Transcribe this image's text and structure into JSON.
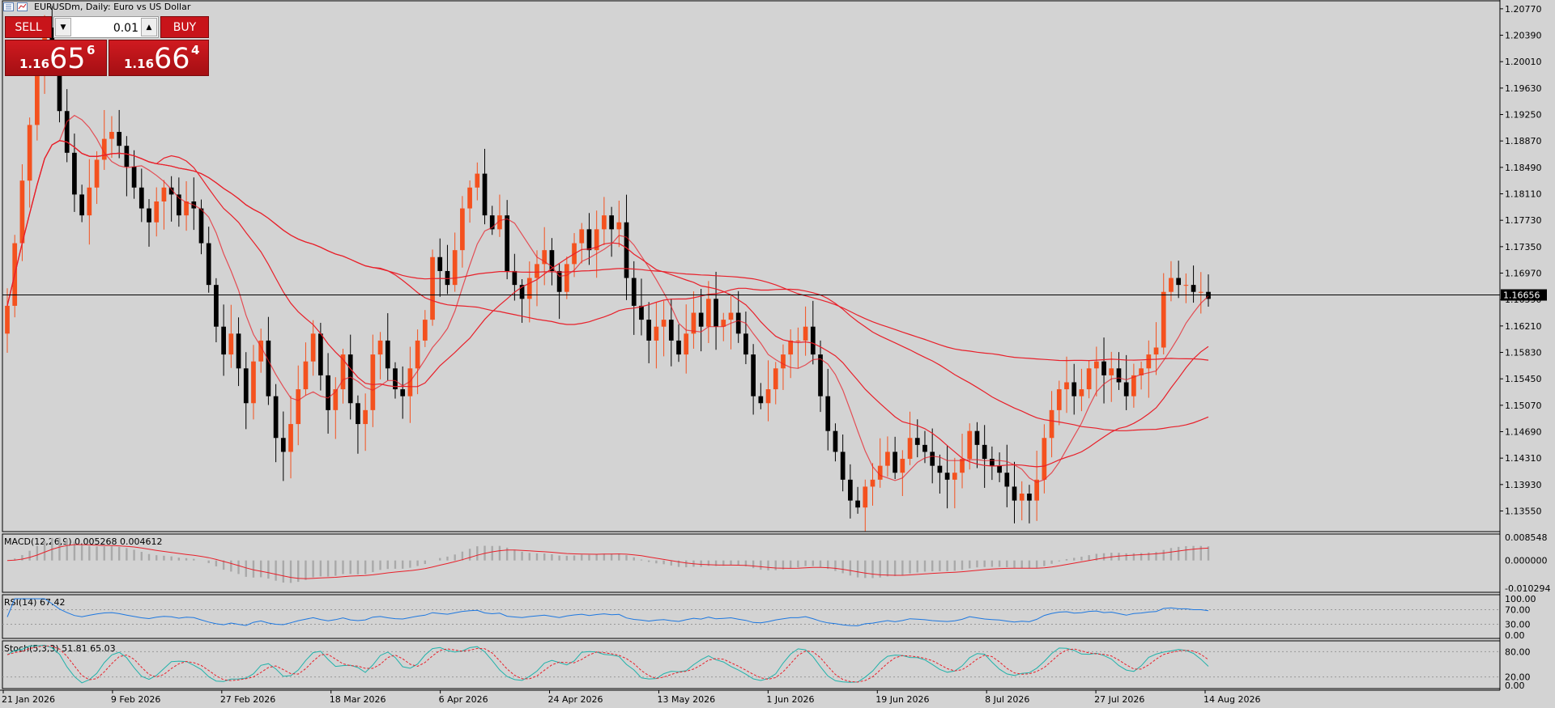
{
  "header": {
    "title": "EURUSDm, Daily:  Euro vs US Dollar"
  },
  "trade_panel": {
    "sell_label": "SELL",
    "buy_label": "BUY",
    "lot_value": "0.01",
    "sell_price": {
      "prefix": "1.16",
      "big": "65",
      "sup": "6"
    },
    "buy_price": {
      "prefix": "1.16",
      "big": "66",
      "sup": "4"
    }
  },
  "colors": {
    "bull": "#f4511e",
    "bear": "#000000",
    "ma": "#e8202a",
    "rsi": "#1e78e0",
    "stoch_main": "#20b2aa",
    "stoch_signal": "#e8202a",
    "background": "#d3d3d3"
  },
  "chart_data": [
    {
      "type": "candlestick",
      "title": "EURUSDm, Daily:  Euro vs US Dollar",
      "ylim": [
        1.133,
        1.2085
      ],
      "y_ticks": [
        "1.20770",
        "1.20390",
        "1.20010",
        "1.19630",
        "1.19250",
        "1.18870",
        "1.18490",
        "1.18110",
        "1.17730",
        "1.17350",
        "1.16970",
        "1.16590",
        "1.16210",
        "1.15830",
        "1.15450",
        "1.15070",
        "1.14690",
        "1.14310",
        "1.13930",
        "1.13550"
      ],
      "current_price_label": "1.16656",
      "current_price": 1.16656,
      "x_ticks": [
        "21 Jan 2026",
        "9 Feb 2026",
        "27 Feb 2026",
        "18 Mar 2026",
        "6 Apr 2026",
        "24 Apr 2026",
        "13 May 2026",
        "1 Jun 2026",
        "19 Jun 2026",
        "8 Jul 2026",
        "27 Jul 2026",
        "14 Aug 2026"
      ],
      "close_path": [
        1.165,
        1.174,
        1.183,
        1.191,
        1.199,
        1.205,
        1.2,
        1.193,
        1.187,
        1.181,
        1.178,
        1.182,
        1.186,
        1.189,
        1.19,
        1.188,
        1.185,
        1.182,
        1.179,
        1.177,
        1.18,
        1.182,
        1.181,
        1.178,
        1.18,
        1.179,
        1.174,
        1.168,
        1.162,
        1.158,
        1.161,
        1.156,
        1.151,
        1.157,
        1.16,
        1.152,
        1.146,
        1.144,
        1.148,
        1.153,
        1.157,
        1.161,
        1.155,
        1.15,
        1.153,
        1.158,
        1.151,
        1.148,
        1.15,
        1.158,
        1.16,
        1.156,
        1.153,
        1.152,
        1.156,
        1.16,
        1.163,
        1.172,
        1.17,
        1.168,
        1.173,
        1.179,
        1.182,
        1.184,
        1.178,
        1.176,
        1.178,
        1.17,
        1.168,
        1.166,
        1.169,
        1.171,
        1.173,
        1.17,
        1.167,
        1.171,
        1.174,
        1.176,
        1.173,
        1.176,
        1.178,
        1.176,
        1.177,
        1.169,
        1.165,
        1.163,
        1.16,
        1.162,
        1.163,
        1.16,
        1.158,
        1.161,
        1.164,
        1.162,
        1.166,
        1.162,
        1.163,
        1.164,
        1.161,
        1.158,
        1.152,
        1.151,
        1.153,
        1.156,
        1.158,
        1.16,
        1.16,
        1.162,
        1.158,
        1.152,
        1.147,
        1.144,
        1.14,
        1.137,
        1.136,
        1.139,
        1.14,
        1.142,
        1.144,
        1.141,
        1.143,
        1.146,
        1.145,
        1.144,
        1.142,
        1.141,
        1.14,
        1.141,
        1.143,
        1.147,
        1.145,
        1.143,
        1.142,
        1.141,
        1.139,
        1.137,
        1.138,
        1.137,
        1.14,
        1.146,
        1.15,
        1.153,
        1.154,
        1.152,
        1.153,
        1.156,
        1.157,
        1.155,
        1.156,
        1.154,
        1.152,
        1.155,
        1.156,
        1.158,
        1.159,
        1.167,
        1.169,
        1.168,
        1.168,
        1.167,
        1.167,
        1.166
      ]
    },
    {
      "type": "histogram",
      "title": "MACD(12,26,9) 0.005268 0.004612",
      "ylim": [
        -0.0112,
        0.0095
      ],
      "y_ticks": [
        "0.008548",
        "0.000000",
        "-0.010294"
      ]
    },
    {
      "type": "line",
      "title": "RSI(14) 67.42",
      "ylim": [
        0,
        100
      ],
      "y_ticks": [
        "100.00",
        "70.00",
        "30.00",
        "0.00"
      ]
    },
    {
      "type": "line",
      "title": "Stoch(5,3,3) 51.81 65.03",
      "ylim": [
        0,
        100
      ],
      "y_ticks": [
        "80.00",
        "20.00",
        "0.00"
      ]
    }
  ]
}
